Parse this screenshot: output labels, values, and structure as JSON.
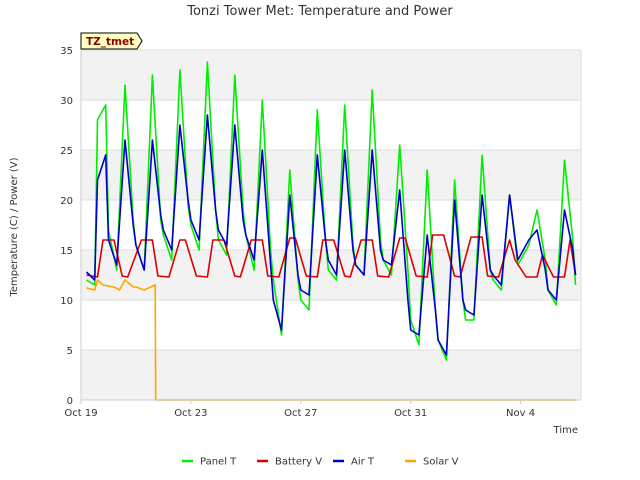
{
  "chart_data": {
    "type": "line",
    "title": "Tonzi Tower Met: Temperature and Power",
    "xlabel": "Time",
    "ylabel": "Temperature (C) / Power (V)",
    "site_tag": "TZ_tmet",
    "x_unit": "days since Oct 19",
    "xlim": [
      0,
      18.2
    ],
    "ylim": [
      0,
      35
    ],
    "y_ticks": [
      0,
      5,
      10,
      15,
      20,
      25,
      30,
      35
    ],
    "x_ticks": [
      {
        "value": 0,
        "label": "Oct 19"
      },
      {
        "value": 4,
        "label": "Oct 23"
      },
      {
        "value": 8,
        "label": "Oct 27"
      },
      {
        "value": 12,
        "label": "Oct 31"
      },
      {
        "value": 16,
        "label": "Nov 4"
      }
    ],
    "grid": true,
    "legend_position": "bottom",
    "series": [
      {
        "name": "Panel T",
        "color": "#00ee00",
        "x": [
          0.2,
          0.5,
          0.6,
          0.9,
          1.0,
          1.3,
          1.6,
          1.9,
          2.0,
          2.3,
          2.6,
          2.9,
          3.0,
          3.3,
          3.6,
          3.9,
          4.0,
          4.3,
          4.6,
          4.9,
          5.0,
          5.3,
          5.6,
          5.9,
          6.0,
          6.3,
          6.6,
          6.9,
          7.0,
          7.3,
          7.6,
          7.9,
          8.0,
          8.3,
          8.6,
          8.9,
          9.0,
          9.3,
          9.6,
          9.9,
          10.0,
          10.3,
          10.6,
          10.9,
          11.0,
          11.3,
          11.6,
          11.9,
          12.0,
          12.3,
          12.6,
          12.9,
          13.0,
          13.3,
          13.6,
          13.9,
          14.0,
          14.3,
          14.6,
          14.9,
          15.0,
          15.3,
          15.6,
          15.9,
          16.0,
          16.3,
          16.6,
          16.9,
          17.0,
          17.3,
          17.6,
          17.9,
          18.0
        ],
        "values": [
          12.0,
          11.5,
          28.0,
          29.5,
          17.0,
          13.0,
          31.5,
          18.0,
          15.5,
          13.0,
          32.5,
          18.0,
          16.5,
          14.0,
          33.0,
          19.5,
          17.5,
          15.0,
          33.8,
          19.0,
          16.0,
          14.5,
          32.5,
          19.0,
          16.5,
          13.0,
          30.0,
          15.0,
          12.0,
          6.5,
          23.0,
          12.0,
          10.0,
          9.0,
          29.0,
          16.0,
          13.0,
          12.0,
          29.5,
          15.5,
          13.5,
          12.5,
          31.0,
          16.0,
          14.0,
          12.5,
          25.5,
          13.0,
          8.0,
          5.5,
          23.0,
          9.0,
          6.0,
          4.0,
          22.0,
          10.0,
          8.0,
          8.0,
          24.5,
          13.0,
          12.0,
          11.0,
          20.5,
          13.5,
          14.0,
          15.5,
          19.0,
          14.0,
          11.0,
          9.5,
          24.0,
          16.0,
          11.5
        ]
      },
      {
        "name": "Battery V",
        "color": "#dd0000",
        "x": [
          0.2,
          0.6,
          0.8,
          1.2,
          1.5,
          1.7,
          2.2,
          2.6,
          2.8,
          3.2,
          3.6,
          3.8,
          4.2,
          4.6,
          4.8,
          5.2,
          5.6,
          5.8,
          6.2,
          6.6,
          6.8,
          7.2,
          7.6,
          7.8,
          8.2,
          8.6,
          8.8,
          9.2,
          9.6,
          9.8,
          10.2,
          10.6,
          10.8,
          11.2,
          11.6,
          11.8,
          12.2,
          12.6,
          12.8,
          13.2,
          13.6,
          13.8,
          14.2,
          14.6,
          14.8,
          15.2,
          15.6,
          15.8,
          16.2,
          16.6,
          16.8,
          17.2,
          17.6,
          17.8,
          18.0
        ],
        "values": [
          12.5,
          12.3,
          16.0,
          16.0,
          12.4,
          12.3,
          16.0,
          16.0,
          12.4,
          12.3,
          16.0,
          16.0,
          12.4,
          12.3,
          16.0,
          16.0,
          12.4,
          12.3,
          16.0,
          16.0,
          12.4,
          12.3,
          16.2,
          16.2,
          12.4,
          12.3,
          16.0,
          16.0,
          12.4,
          12.3,
          16.0,
          16.0,
          12.4,
          12.3,
          16.2,
          16.2,
          12.4,
          12.3,
          16.5,
          16.5,
          12.4,
          12.3,
          16.3,
          16.3,
          12.4,
          12.3,
          16.0,
          14.0,
          12.3,
          12.3,
          14.5,
          12.3,
          12.3,
          16.0,
          12.5
        ]
      },
      {
        "name": "Air T",
        "color": "#0000cc",
        "x": [
          0.2,
          0.5,
          0.6,
          0.9,
          1.0,
          1.3,
          1.6,
          1.9,
          2.0,
          2.3,
          2.6,
          2.9,
          3.0,
          3.3,
          3.6,
          3.9,
          4.0,
          4.3,
          4.6,
          4.9,
          5.0,
          5.3,
          5.6,
          5.9,
          6.0,
          6.3,
          6.6,
          6.9,
          7.0,
          7.3,
          7.6,
          7.9,
          8.0,
          8.3,
          8.6,
          8.9,
          9.0,
          9.3,
          9.6,
          9.9,
          10.0,
          10.3,
          10.6,
          10.9,
          11.0,
          11.3,
          11.6,
          11.9,
          12.0,
          12.3,
          12.6,
          12.9,
          13.0,
          13.3,
          13.6,
          13.9,
          14.0,
          14.3,
          14.6,
          14.9,
          15.0,
          15.3,
          15.6,
          15.9,
          16.0,
          16.3,
          16.6,
          16.9,
          17.0,
          17.3,
          17.6,
          17.9,
          18.0
        ],
        "values": [
          12.8,
          12.0,
          22.0,
          24.5,
          16.0,
          13.5,
          26.0,
          17.5,
          15.5,
          13.0,
          26.0,
          18.5,
          17.0,
          15.0,
          27.5,
          20.0,
          18.0,
          16.0,
          28.5,
          19.0,
          17.0,
          15.5,
          27.5,
          18.0,
          16.5,
          14.0,
          25.0,
          13.5,
          10.0,
          7.0,
          20.5,
          12.5,
          11.0,
          10.5,
          24.5,
          16.0,
          14.0,
          12.5,
          25.0,
          15.0,
          13.5,
          12.5,
          25.0,
          15.0,
          14.0,
          13.5,
          21.0,
          10.0,
          7.0,
          6.5,
          16.5,
          9.0,
          6.0,
          4.5,
          20.0,
          10.0,
          9.0,
          8.5,
          20.5,
          13.0,
          12.5,
          11.5,
          20.5,
          14.0,
          14.5,
          16.0,
          17.0,
          13.0,
          11.0,
          10.0,
          19.0,
          15.0,
          12.5
        ]
      },
      {
        "name": "Solar V",
        "color": "#ffa500",
        "x": [
          0.2,
          0.5,
          0.6,
          0.8,
          1.2,
          1.4,
          1.6,
          1.9,
          2.0,
          2.3,
          2.7,
          2.72,
          2.8,
          12.0,
          18.0
        ],
        "values": [
          11.2,
          11.0,
          12.0,
          11.5,
          11.3,
          11.0,
          12.0,
          11.3,
          11.3,
          11.0,
          11.5,
          0.0,
          0.0,
          0.0,
          0.0
        ]
      }
    ]
  }
}
